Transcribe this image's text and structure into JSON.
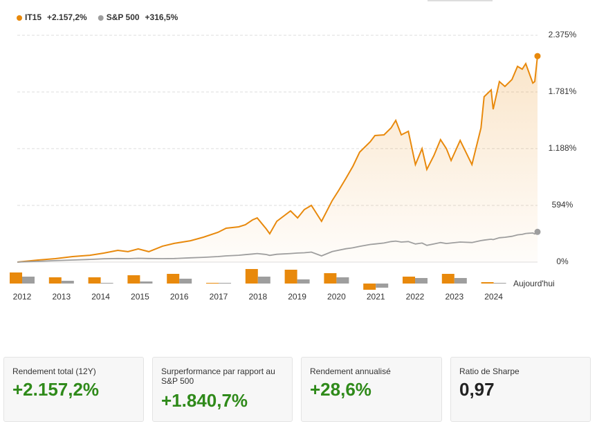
{
  "chart_data": [
    {
      "type": "line",
      "x": [
        2012.0,
        2012.53,
        2012.97,
        2013.41,
        2013.85,
        2014.2,
        2014.56,
        2014.82,
        2015.08,
        2015.35,
        2015.7,
        2016.0,
        2016.41,
        2016.74,
        2017.11,
        2017.32,
        2017.64,
        2017.81,
        2017.99,
        2018.11,
        2018.34,
        2018.43,
        2018.61,
        2018.96,
        2019.14,
        2019.31,
        2019.49,
        2019.75,
        2020.02,
        2020.19,
        2020.37,
        2020.55,
        2020.72,
        2020.99,
        2021.11,
        2021.34,
        2021.52,
        2021.64,
        2021.78,
        2021.96,
        2022.14,
        2022.31,
        2022.43,
        2022.61,
        2022.78,
        2022.93,
        2023.05,
        2023.28,
        2023.58,
        2023.81,
        2023.89,
        2024.07,
        2024.12,
        2024.28,
        2024.42,
        2024.6,
        2024.74,
        2024.86,
        2024.95,
        2025.13,
        2025.18,
        2025.25
      ],
      "series": [
        {
          "name": "IT15",
          "summary": "+2.157,2%",
          "color": "#e8890c",
          "values": [
            0,
            22,
            36,
            58,
            72,
            94,
            123,
            109,
            138,
            109,
            167,
            196,
            224,
            261,
            311,
            355,
            369,
            391,
            442,
            463,
            348,
            297,
            427,
            536,
            463,
            550,
            594,
            427,
            644,
            753,
            876,
            1006,
            1151,
            1260,
            1325,
            1332,
            1405,
            1484,
            1332,
            1369,
            1021,
            1188,
            970,
            1115,
            1282,
            1188,
            1064,
            1274,
            1021,
            1405,
            1731,
            1803,
            1600,
            1890,
            1839,
            1912,
            2049,
            2020,
            2078,
            1875,
            1890,
            2157.2
          ]
        },
        {
          "name": "S&P 500",
          "summary": "+316,5%",
          "color": "#9e9e9e",
          "values": [
            0,
            8,
            15,
            22,
            28,
            35,
            38,
            36,
            40,
            38,
            36,
            38,
            45,
            50,
            58,
            65,
            72,
            78,
            85,
            90,
            80,
            70,
            82,
            90,
            95,
            98,
            105,
            65,
            110,
            125,
            140,
            150,
            165,
            185,
            190,
            200,
            215,
            220,
            210,
            215,
            190,
            200,
            175,
            190,
            205,
            195,
            200,
            210,
            205,
            225,
            230,
            240,
            235,
            255,
            260,
            270,
            285,
            290,
            300,
            305,
            295,
            316.5
          ]
        }
      ],
      "xlim": [
        2012,
        2025.25
      ],
      "ylim": [
        0,
        2375
      ],
      "yticks": [
        {
          "value": 0,
          "label": "0%"
        },
        {
          "value": 594,
          "label": "594%"
        },
        {
          "value": 1188,
          "label": "1.188%"
        },
        {
          "value": 1781,
          "label": "1.781%"
        },
        {
          "value": 2375,
          "label": "2.375%"
        }
      ],
      "grid": true
    },
    {
      "type": "bar",
      "categories": [
        "2012",
        "2013",
        "2014",
        "2015",
        "2016",
        "2017",
        "2018",
        "2019",
        "2020",
        "2021",
        "2022",
        "2023",
        "2024"
      ],
      "series": [
        {
          "name": "IT15",
          "color": "#e8890c",
          "values": [
            32,
            18,
            18,
            24,
            28,
            2,
            42,
            40,
            30,
            -18,
            20,
            28,
            4
          ]
        },
        {
          "name": "S&P 500",
          "color": "#9e9e9e",
          "values": [
            20,
            8,
            2,
            6,
            14,
            2,
            20,
            12,
            18,
            -12,
            16,
            16,
            2
          ]
        }
      ],
      "annotation": "Aujourd'hui"
    }
  ],
  "kpis": [
    {
      "label": "Rendement total (12Y)",
      "value": "+2.157,2%"
    },
    {
      "label": "Surperformance par rapport au S&P 500",
      "value": "+1.840,7%"
    },
    {
      "label": "Rendement annualisé",
      "value": "+28,6%"
    },
    {
      "label": "Ratio de Sharpe",
      "value": "0,97"
    }
  ]
}
